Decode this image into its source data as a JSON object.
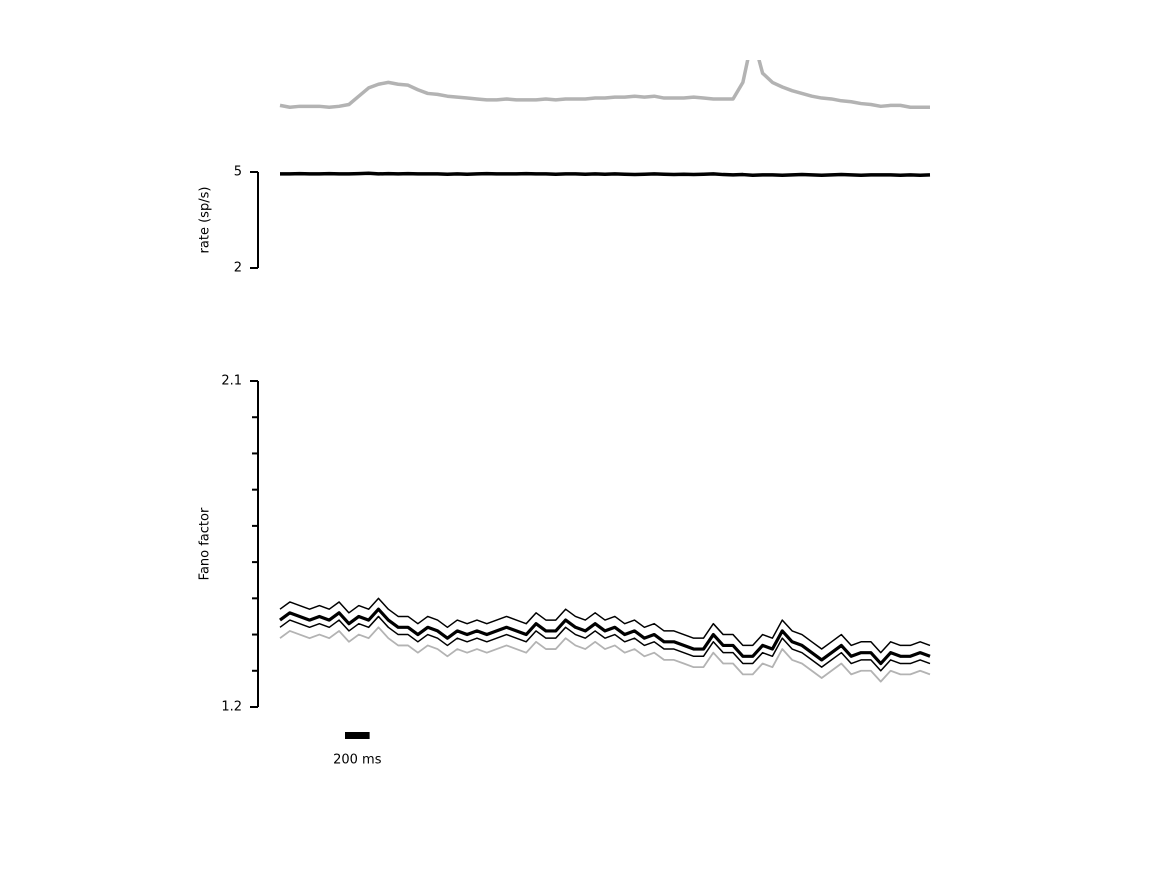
{
  "chart_data": [
    {
      "type": "line",
      "x": [
        0,
        80,
        160,
        240,
        320,
        400,
        480,
        560,
        640,
        720,
        800,
        880,
        960,
        1040,
        1120,
        1200,
        1280,
        1360,
        1440,
        1520,
        1600,
        1680,
        1760,
        1840,
        1920,
        2000,
        2080,
        2160,
        2240,
        2320,
        2400,
        2480,
        2560,
        2640,
        2720,
        2800,
        2880,
        2960,
        3040,
        3120,
        3200,
        3280,
        3360,
        3440,
        3520,
        3600,
        3680,
        3760,
        3840,
        3920,
        4000,
        4080,
        4160,
        4240,
        4320,
        4400,
        4480,
        4560,
        4640,
        4720,
        4800,
        4880,
        4960,
        5040,
        5120,
        5200,
        5280
      ],
      "xlim": [
        0,
        5280
      ],
      "ylim": [
        0,
        1
      ],
      "series": [
        {
          "color": "#b3b3b3",
          "width": 3.5,
          "values": [
            0.1,
            0.06,
            0.08,
            0.08,
            0.08,
            0.06,
            0.08,
            0.12,
            0.3,
            0.48,
            0.56,
            0.6,
            0.56,
            0.54,
            0.44,
            0.36,
            0.34,
            0.3,
            0.28,
            0.26,
            0.24,
            0.22,
            0.22,
            0.24,
            0.22,
            0.22,
            0.22,
            0.24,
            0.22,
            0.24,
            0.24,
            0.24,
            0.26,
            0.26,
            0.28,
            0.28,
            0.3,
            0.28,
            0.3,
            0.26,
            0.26,
            0.26,
            0.28,
            0.26,
            0.24,
            0.24,
            0.24,
            0.6,
            1.6,
            0.8,
            0.6,
            0.5,
            0.42,
            0.36,
            0.3,
            0.26,
            0.24,
            0.2,
            0.18,
            0.14,
            0.12,
            0.08,
            0.1,
            0.1,
            0.06,
            0.06,
            0.06
          ]
        }
      ]
    },
    {
      "type": "line",
      "ylabel": "rate (sp/s)",
      "x": [
        0,
        80,
        160,
        240,
        320,
        400,
        480,
        560,
        640,
        720,
        800,
        880,
        960,
        1040,
        1120,
        1200,
        1280,
        1360,
        1440,
        1520,
        1600,
        1680,
        1760,
        1840,
        1920,
        2000,
        2080,
        2160,
        2240,
        2320,
        2400,
        2480,
        2560,
        2640,
        2720,
        2800,
        2880,
        2960,
        3040,
        3120,
        3200,
        3280,
        3360,
        3440,
        3520,
        3600,
        3680,
        3760,
        3840,
        3920,
        4000,
        4080,
        4160,
        4240,
        4320,
        4400,
        4480,
        4560,
        4640,
        4720,
        4800,
        4880,
        4960,
        5040,
        5120,
        5200,
        5280
      ],
      "xlim": [
        0,
        5280
      ],
      "ylim": [
        2,
        5
      ],
      "yticks": [
        2,
        5
      ],
      "series": [
        {
          "color": "#000000",
          "width": 3.5,
          "values": [
            4.94,
            4.94,
            4.95,
            4.94,
            4.94,
            4.95,
            4.94,
            4.94,
            4.95,
            4.96,
            4.94,
            4.95,
            4.94,
            4.95,
            4.94,
            4.94,
            4.94,
            4.93,
            4.94,
            4.93,
            4.94,
            4.95,
            4.94,
            4.94,
            4.94,
            4.95,
            4.94,
            4.94,
            4.93,
            4.94,
            4.94,
            4.93,
            4.94,
            4.93,
            4.94,
            4.93,
            4.92,
            4.93,
            4.94,
            4.93,
            4.92,
            4.93,
            4.92,
            4.93,
            4.94,
            4.92,
            4.91,
            4.92,
            4.9,
            4.91,
            4.91,
            4.9,
            4.91,
            4.92,
            4.91,
            4.9,
            4.91,
            4.92,
            4.91,
            4.9,
            4.91,
            4.91,
            4.91,
            4.9,
            4.91,
            4.9,
            4.91
          ]
        }
      ]
    },
    {
      "type": "line",
      "ylabel": "Fano factor",
      "x": [
        0,
        80,
        160,
        240,
        320,
        400,
        480,
        560,
        640,
        720,
        800,
        880,
        960,
        1040,
        1120,
        1200,
        1280,
        1360,
        1440,
        1520,
        1600,
        1680,
        1760,
        1840,
        1920,
        2000,
        2080,
        2160,
        2240,
        2320,
        2400,
        2480,
        2560,
        2640,
        2720,
        2800,
        2880,
        2960,
        3040,
        3120,
        3200,
        3280,
        3360,
        3440,
        3520,
        3600,
        3680,
        3760,
        3840,
        3920,
        4000,
        4080,
        4160,
        4240,
        4320,
        4400,
        4480,
        4560,
        4640,
        4720,
        4800,
        4880,
        4960,
        5040,
        5120,
        5200,
        5280
      ],
      "xlim": [
        0,
        5280
      ],
      "ylim": [
        1.2,
        2.1
      ],
      "yticks": [
        1.2,
        2.1
      ],
      "minor_yticks": [
        1.3,
        1.4,
        1.5,
        1.6,
        1.7,
        1.8,
        1.9,
        2.0
      ],
      "scale_bar": {
        "length": 200,
        "label": "200 ms"
      },
      "series": [
        {
          "color": "#b3b3b3",
          "width": 1.8,
          "values": [
            1.39,
            1.41,
            1.4,
            1.39,
            1.4,
            1.39,
            1.41,
            1.38,
            1.4,
            1.39,
            1.42,
            1.39,
            1.37,
            1.37,
            1.35,
            1.37,
            1.36,
            1.34,
            1.36,
            1.35,
            1.36,
            1.35,
            1.36,
            1.37,
            1.36,
            1.35,
            1.38,
            1.36,
            1.36,
            1.39,
            1.37,
            1.36,
            1.38,
            1.36,
            1.37,
            1.35,
            1.36,
            1.34,
            1.35,
            1.33,
            1.33,
            1.32,
            1.31,
            1.31,
            1.35,
            1.32,
            1.32,
            1.29,
            1.29,
            1.32,
            1.31,
            1.36,
            1.33,
            1.32,
            1.3,
            1.28,
            1.3,
            1.32,
            1.29,
            1.3,
            1.3,
            1.27,
            1.3,
            1.29,
            1.29,
            1.3,
            1.29
          ]
        },
        {
          "color": "#000000",
          "width": 1.5,
          "values": [
            1.42,
            1.44,
            1.43,
            1.42,
            1.43,
            1.42,
            1.44,
            1.41,
            1.43,
            1.42,
            1.45,
            1.42,
            1.4,
            1.4,
            1.38,
            1.4,
            1.39,
            1.37,
            1.39,
            1.38,
            1.39,
            1.38,
            1.39,
            1.4,
            1.39,
            1.38,
            1.41,
            1.39,
            1.39,
            1.42,
            1.4,
            1.39,
            1.41,
            1.39,
            1.4,
            1.38,
            1.39,
            1.37,
            1.38,
            1.36,
            1.36,
            1.35,
            1.34,
            1.34,
            1.38,
            1.35,
            1.35,
            1.32,
            1.32,
            1.35,
            1.34,
            1.39,
            1.36,
            1.35,
            1.33,
            1.31,
            1.33,
            1.35,
            1.32,
            1.33,
            1.33,
            1.3,
            1.33,
            1.32,
            1.32,
            1.33,
            1.32
          ]
        },
        {
          "color": "#000000",
          "width": 1.5,
          "values": [
            1.47,
            1.49,
            1.48,
            1.47,
            1.48,
            1.47,
            1.49,
            1.46,
            1.48,
            1.47,
            1.5,
            1.47,
            1.45,
            1.45,
            1.43,
            1.45,
            1.44,
            1.42,
            1.44,
            1.43,
            1.44,
            1.43,
            1.44,
            1.45,
            1.44,
            1.43,
            1.46,
            1.44,
            1.44,
            1.47,
            1.45,
            1.44,
            1.46,
            1.44,
            1.45,
            1.43,
            1.44,
            1.42,
            1.43,
            1.41,
            1.41,
            1.4,
            1.39,
            1.39,
            1.43,
            1.4,
            1.4,
            1.37,
            1.37,
            1.4,
            1.39,
            1.44,
            1.41,
            1.4,
            1.38,
            1.36,
            1.38,
            1.4,
            1.37,
            1.38,
            1.38,
            1.35,
            1.38,
            1.37,
            1.37,
            1.38,
            1.37
          ]
        },
        {
          "color": "#000000",
          "width": 3.2,
          "values": [
            1.44,
            1.46,
            1.45,
            1.44,
            1.45,
            1.44,
            1.46,
            1.43,
            1.45,
            1.44,
            1.47,
            1.44,
            1.42,
            1.42,
            1.4,
            1.42,
            1.41,
            1.39,
            1.41,
            1.4,
            1.41,
            1.4,
            1.41,
            1.42,
            1.41,
            1.4,
            1.43,
            1.41,
            1.41,
            1.44,
            1.42,
            1.41,
            1.43,
            1.41,
            1.42,
            1.4,
            1.41,
            1.39,
            1.4,
            1.38,
            1.38,
            1.37,
            1.36,
            1.36,
            1.4,
            1.37,
            1.37,
            1.34,
            1.34,
            1.37,
            1.36,
            1.41,
            1.38,
            1.37,
            1.35,
            1.33,
            1.35,
            1.37,
            1.34,
            1.35,
            1.35,
            1.32,
            1.35,
            1.34,
            1.34,
            1.35,
            1.34
          ]
        }
      ]
    }
  ]
}
